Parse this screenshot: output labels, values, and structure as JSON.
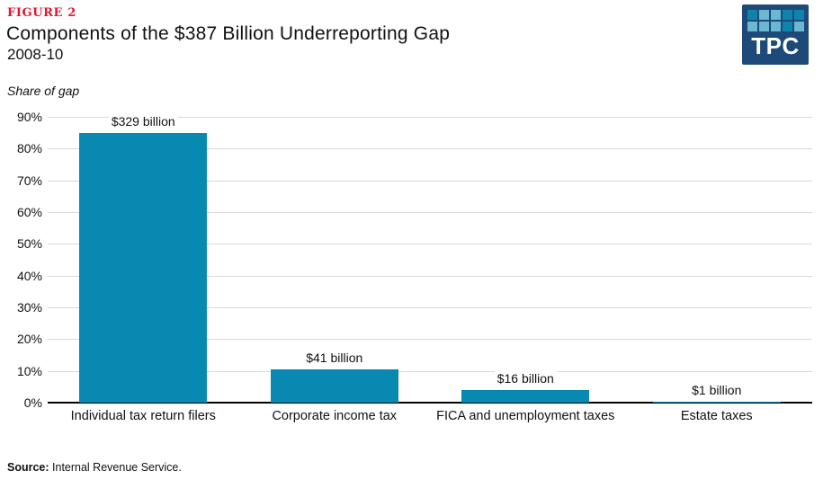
{
  "figure": {
    "label": "FIGURE 2",
    "title": "Components of the $387 Billion Underreporting Gap",
    "subtitle": "2008-10",
    "axis_note": "Share of gap"
  },
  "logo": {
    "text": "TPC",
    "background": "#1e4a7a",
    "square_dark": "#0e84ad",
    "square_light": "#6cb7d2",
    "pattern": [
      "dark",
      "light",
      "light",
      "dark",
      "dark",
      "light",
      "light",
      "light",
      "dark",
      "light"
    ]
  },
  "colors": {
    "bar": "#0889b1",
    "figure_label": "#e8112d",
    "gridline": "#d9d9d9",
    "axis_line": "#000000"
  },
  "source": {
    "label": "Source:",
    "text": " Internal Revenue Service."
  },
  "chart_data": {
    "type": "bar",
    "title": "Components of the $387 Billion Underreporting Gap",
    "subtitle": "2008-10",
    "ylabel": "Share of gap",
    "xlabel": "",
    "categories": [
      "Individual tax return filers",
      "Corporate income tax",
      "FICA and unemployment taxes",
      "Estate taxes"
    ],
    "values_pct": [
      85,
      10.6,
      4.1,
      0.26
    ],
    "bar_labels": [
      "$329 billion",
      "$41 billion",
      "$16 billion",
      "$1 billion"
    ],
    "values_billions": [
      329,
      41,
      16,
      1
    ],
    "total_billions": 387,
    "ylim": [
      0,
      90
    ],
    "y_tick_labels": [
      "90%",
      "80%",
      "70%",
      "60%",
      "50%",
      "40%",
      "30%",
      "20%",
      "10%",
      "0%"
    ],
    "grid": true,
    "legend": false
  }
}
